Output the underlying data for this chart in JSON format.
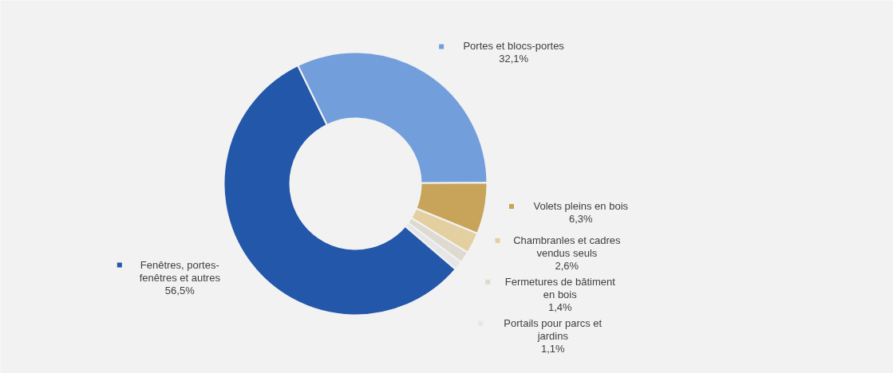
{
  "chart_data": {
    "type": "donut",
    "categories": [
      "Portes et blocs-portes",
      "Volets pleins en bois",
      "Chambranles et cadres vendus seuls",
      "Fermetures de bâtiment en bois",
      "Portails pour parcs et jardins",
      "Fenêtres, portes-fenêtres et autres"
    ],
    "values": [
      32.1,
      6.3,
      2.6,
      1.4,
      1.1,
      56.5
    ],
    "colors": [
      "#729fdb",
      "#c8a45a",
      "#e3cf9f",
      "#dedad0",
      "#e6e6e6",
      "#2257a9"
    ],
    "value_labels": [
      "32,1%",
      "6,3%",
      "2,6%",
      "1,4%",
      "1,1%",
      "56,5%"
    ],
    "legend": "right"
  }
}
